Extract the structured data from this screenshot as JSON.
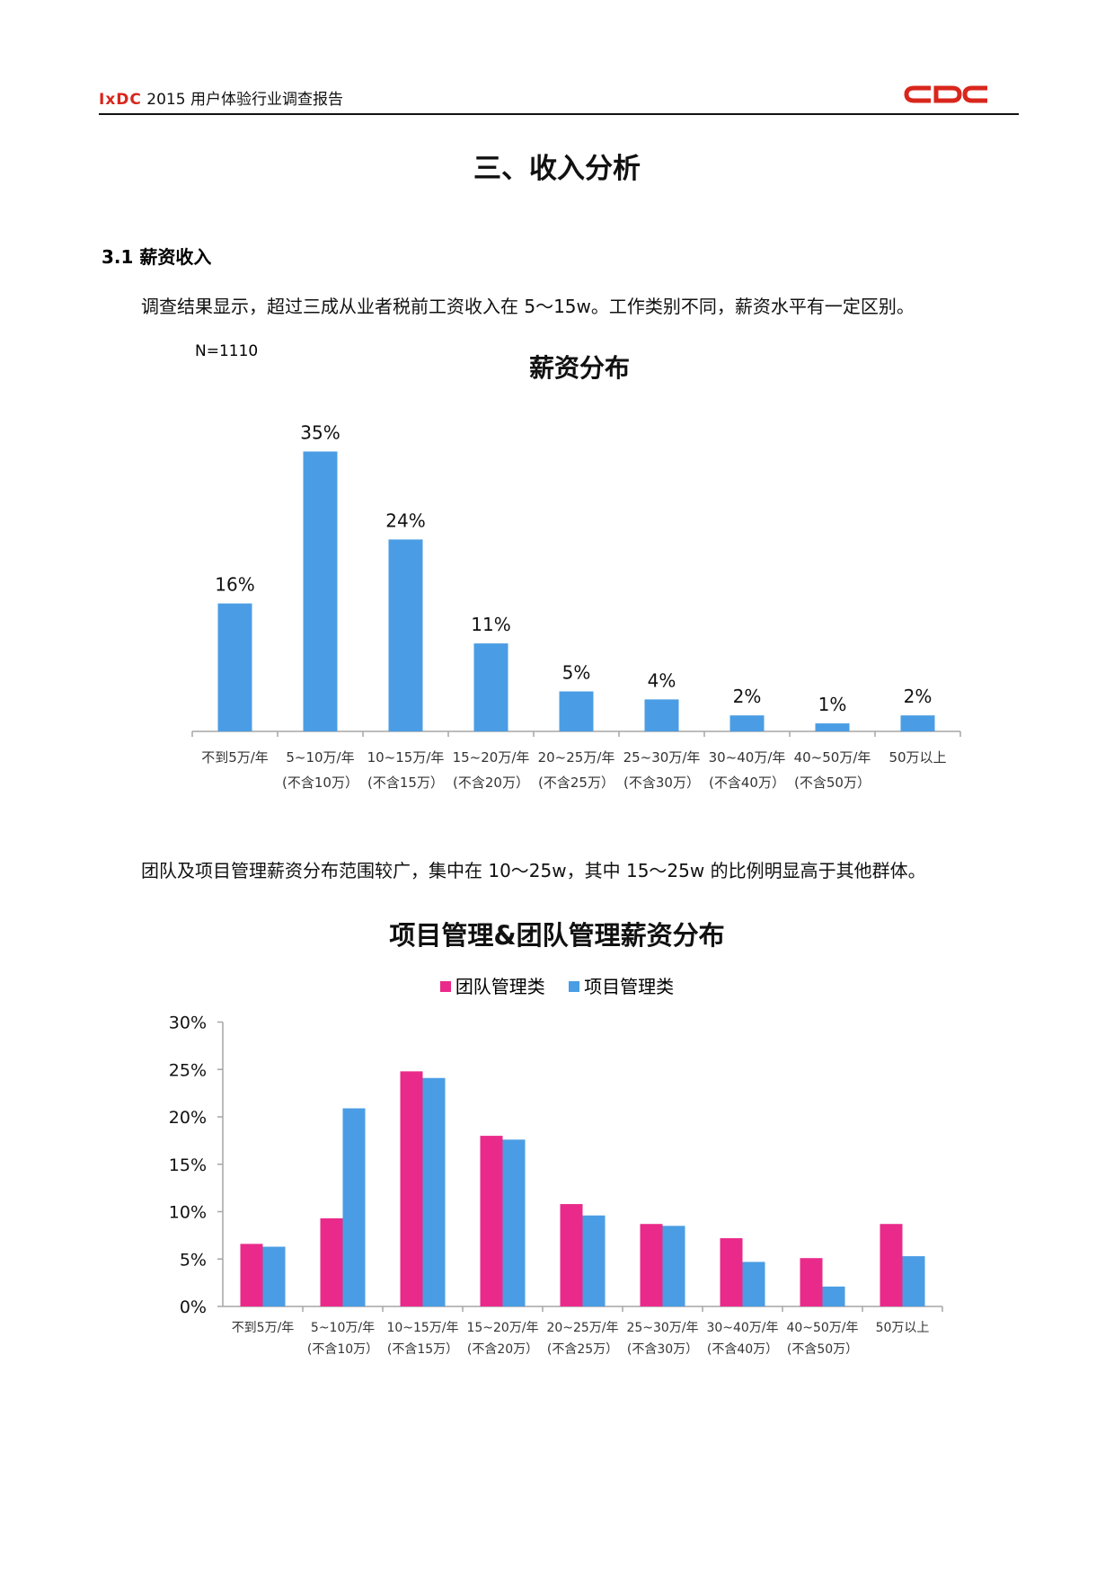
{
  "header": {
    "brand": "IxDC",
    "title": "2015 用户体验行业调查报告",
    "logo_text": "CDC",
    "logo_color": "#d9261c"
  },
  "page_title": "三、收入分析",
  "section": {
    "heading": "3.1 薪资收入"
  },
  "paragraphs": {
    "p1": "调查结果显示，超过三成从业者税前工资收入在 5～15w。工作类别不同，薪资水平有一定区别。",
    "p2": "团队及项目管理薪资分布范围较广，集中在 10～25w，其中 15～25w 的比例明显高于其他群体。"
  },
  "chart1_note": "N=1110",
  "chart_data": [
    {
      "type": "bar",
      "title": "薪资分布",
      "categories": [
        [
          "不到5万/年",
          ""
        ],
        [
          "5~10万/年",
          "(不含10万）"
        ],
        [
          "10~15万/年",
          "(不含15万）"
        ],
        [
          "15~20万/年",
          "(不含20万）"
        ],
        [
          "20~25万/年",
          "(不含25万）"
        ],
        [
          "25~30万/年",
          "(不含30万）"
        ],
        [
          "30~40万/年",
          "(不含40万）"
        ],
        [
          "40~50万/年",
          "(不含50万）"
        ],
        [
          "50万以上",
          ""
        ]
      ],
      "values": [
        16,
        35,
        24,
        11,
        5,
        4,
        2,
        1,
        2
      ],
      "value_labels": [
        "16%",
        "35%",
        "24%",
        "11%",
        "5%",
        "4%",
        "2%",
        "1%",
        "2%"
      ],
      "color": "#4a9de4",
      "ylim": [
        0,
        36
      ]
    },
    {
      "type": "bar",
      "title": "项目管理&团队管理薪资分布",
      "categories": [
        [
          "不到5万/年",
          ""
        ],
        [
          "5~10万/年",
          "(不含10万）"
        ],
        [
          "10~15万/年",
          "(不含15万）"
        ],
        [
          "15~20万/年",
          "(不含20万）"
        ],
        [
          "20~25万/年",
          "(不含25万）"
        ],
        [
          "25~30万/年",
          "(不含30万）"
        ],
        [
          "30~40万/年",
          "(不含40万）"
        ],
        [
          "40~50万/年",
          "(不含50万）"
        ],
        [
          "50万以上",
          ""
        ]
      ],
      "series": [
        {
          "name": "团队管理类",
          "color": "#ea2a8a",
          "values": [
            6.6,
            9.3,
            24.8,
            18.0,
            10.8,
            8.7,
            7.2,
            5.1,
            8.7
          ]
        },
        {
          "name": "项目管理类",
          "color": "#4a9de4",
          "values": [
            6.3,
            20.9,
            24.1,
            17.6,
            9.6,
            8.5,
            4.7,
            2.1,
            5.3
          ]
        }
      ],
      "yticks": [
        "0%",
        "5%",
        "10%",
        "15%",
        "20%",
        "25%",
        "30%"
      ],
      "ylim": [
        0,
        30
      ],
      "legend_position": "top"
    }
  ]
}
